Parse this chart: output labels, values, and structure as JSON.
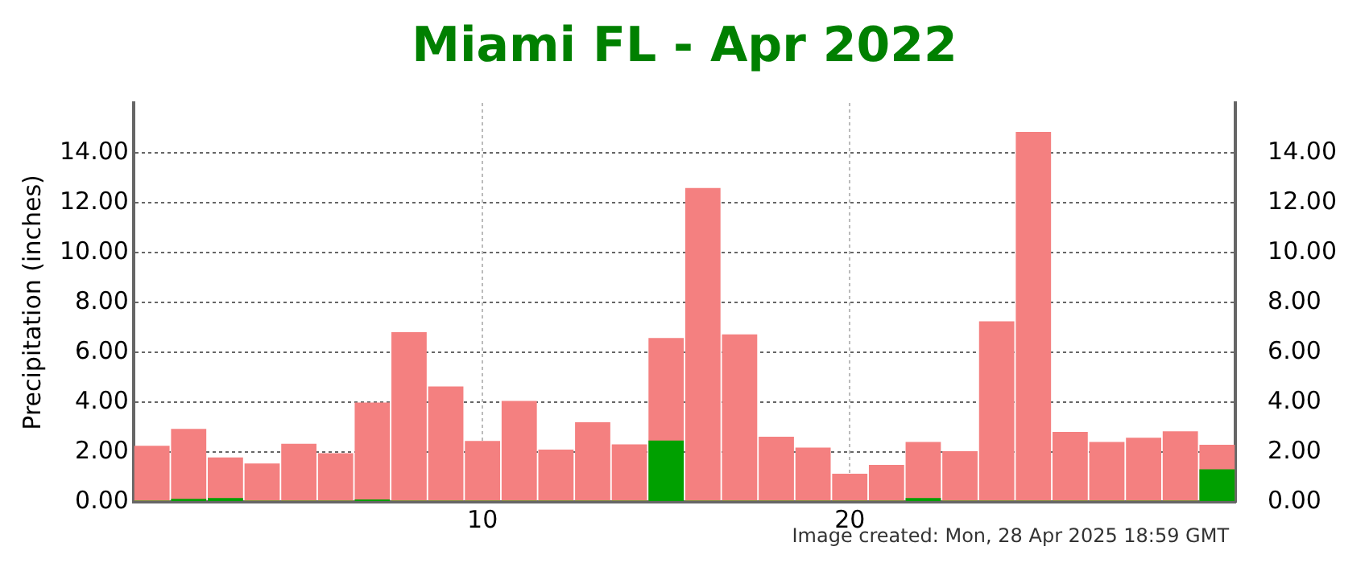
{
  "chart_data": {
    "type": "bar",
    "title": "Miami FL - Apr 2022",
    "ylabel": "Precipitation (inches)",
    "x": [
      1,
      2,
      3,
      4,
      5,
      6,
      7,
      8,
      9,
      10,
      11,
      12,
      13,
      14,
      15,
      16,
      17,
      18,
      19,
      20,
      21,
      22,
      23,
      24,
      25,
      26,
      27,
      28,
      29,
      30
    ],
    "xlim": [
      0.5,
      30.5
    ],
    "xticks": [
      10,
      20
    ],
    "series": [
      {
        "color": "#f48080",
        "values": [
          2.25,
          2.93,
          1.78,
          1.54,
          2.33,
          1.95,
          3.98,
          6.81,
          4.63,
          2.44,
          4.05,
          2.1,
          3.19,
          2.31,
          6.57,
          12.59,
          6.72,
          2.61,
          2.18,
          1.13,
          1.48,
          2.4,
          2.03,
          7.24,
          14.84,
          2.81,
          2.4,
          2.57,
          2.83,
          2.29
        ]
      },
      {
        "color": "#00a000",
        "values": [
          0.05,
          0.12,
          0.15,
          0.05,
          0.05,
          0.05,
          0.1,
          0.05,
          0.05,
          0.05,
          0.05,
          0.05,
          0.05,
          0.05,
          2.46,
          0.05,
          0.05,
          0.05,
          0.05,
          0.05,
          0.05,
          0.15,
          0.05,
          0.05,
          0.05,
          0.05,
          0.05,
          0.05,
          0.05,
          1.31
        ]
      }
    ],
    "ylim": [
      0,
      16
    ],
    "yticks": [
      {
        "value": 0,
        "label": "0.00"
      },
      {
        "value": 2,
        "label": "2.00"
      },
      {
        "value": 4,
        "label": "4.00"
      },
      {
        "value": 6,
        "label": "6.00"
      },
      {
        "value": 8,
        "label": "8.00"
      },
      {
        "value": 10,
        "label": "10.00"
      },
      {
        "value": 12,
        "label": "12.00"
      },
      {
        "value": 14,
        "label": "14.00"
      }
    ],
    "y2lim": [
      0,
      16
    ],
    "y2ticks": [
      {
        "value": 0,
        "label": "0.00"
      },
      {
        "value": 2,
        "label": "2.00"
      },
      {
        "value": 4,
        "label": "4.00"
      },
      {
        "value": 6,
        "label": "6.00"
      },
      {
        "value": 8,
        "label": "8.00"
      },
      {
        "value": 10,
        "label": "10.00"
      },
      {
        "value": 12,
        "label": "12.00"
      },
      {
        "value": 14,
        "label": "14.00"
      }
    ],
    "grid": true,
    "legend": false,
    "annotations": [
      "Image created: Mon, 28 Apr 2025 18:59 GMT"
    ]
  }
}
